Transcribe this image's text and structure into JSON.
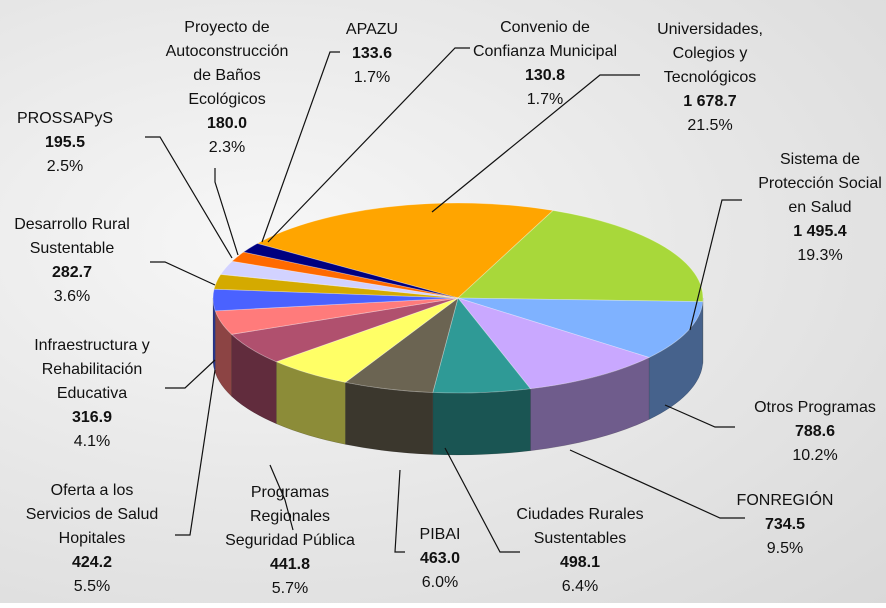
{
  "chart_data": {
    "type": "pie3d",
    "categories": [
      "Universidades,\nColegios y\nTecnológicos",
      "Sistema de\nProtección Social\nen Salud",
      "Otros Programas",
      "FONREGIÓN",
      "Ciudades Rurales\nSustentables",
      "PIBAI",
      "Programas\nRegionales\nSeguridad Pública",
      "Oferta a los\nServicios de Salud\nHopitales",
      "Infraestructura y\nRehabilitación\nEducativa",
      "Desarrollo Rural\nSustentable",
      "PROSSAPyS",
      "Proyecto de\nAutoconstrucción\nde Baños\nEcológicos",
      "APAZU",
      "Convenio de\nConfianza Municipal"
    ],
    "values": [
      1678.7,
      1495.4,
      788.6,
      734.5,
      498.1,
      463.0,
      441.8,
      424.2,
      316.9,
      282.7,
      195.5,
      180.0,
      133.6,
      130.8
    ],
    "value_labels": [
      "1 678.7",
      "1 495.4",
      "788.6",
      "734.5",
      "498.1",
      "463.0",
      "441.8",
      "424.2",
      "316.9",
      "282.7",
      "195.5",
      "180.0",
      "133.6",
      "130.8"
    ],
    "percent_labels": [
      "21.5%",
      "19.3%",
      "10.2%",
      "9.5%",
      "6.4%",
      "6.0%",
      "5.7%",
      "5.5%",
      "4.1%",
      "3.6%",
      "2.5%",
      "2.3%",
      "1.7%",
      "1.7%"
    ],
    "colors": [
      "#ffa500",
      "#a8d83a",
      "#7fb2ff",
      "#c9a8ff",
      "#2f9a96",
      "#6b6452",
      "#ffff66",
      "#b0506e",
      "#ff7b7b",
      "#4a62ff",
      "#d4aa00",
      "#d2d2ff",
      "#ff6a00",
      "#000080"
    ]
  }
}
